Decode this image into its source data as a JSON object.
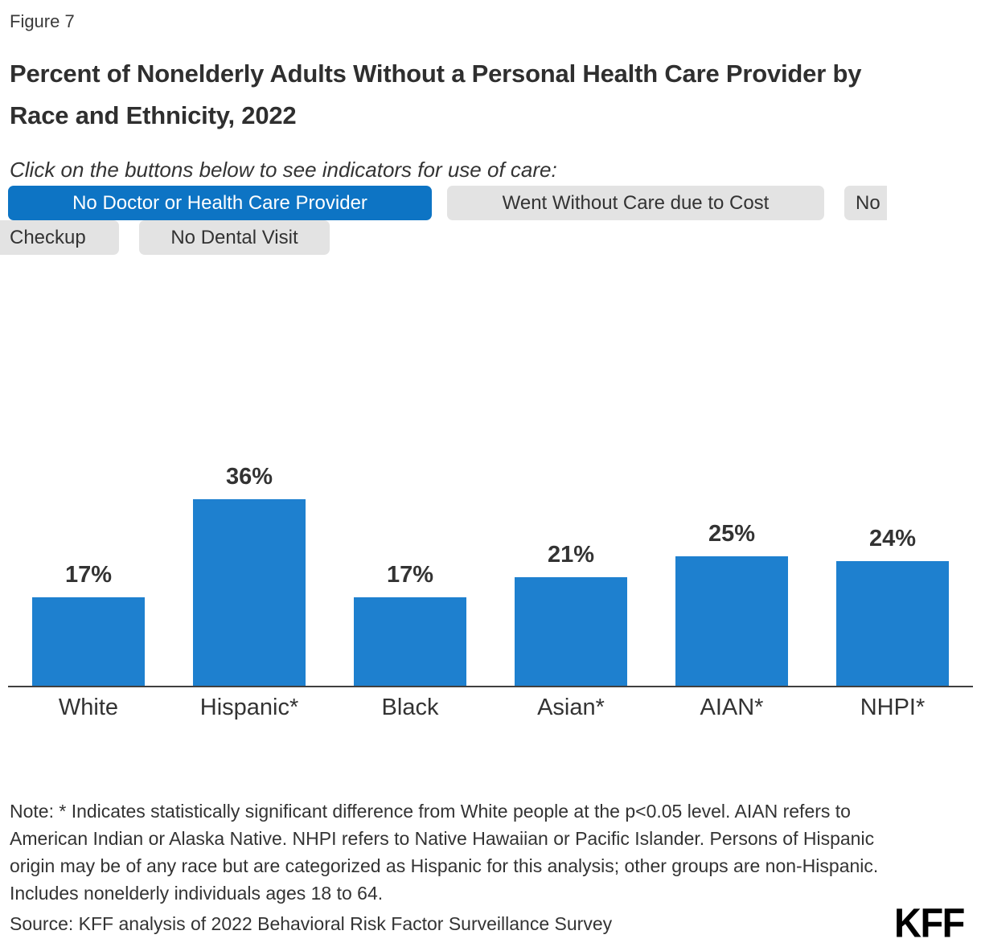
{
  "figure_label": "Figure 7",
  "title": "Percent of Nonelderly Adults Without a Personal Health Care Provider by Race and Ethnicity, 2022",
  "instruction": "Click on the buttons below to see indicators for use of care:",
  "buttons": {
    "items": [
      {
        "label": "No Doctor or Health Care Provider",
        "state": "active"
      },
      {
        "label": "Went Without Care due to Cost",
        "state": "default"
      },
      {
        "label": "No Checkup",
        "state": "default",
        "fragments": [
          "No",
          "Checkup"
        ]
      },
      {
        "label": "No Dental Visit",
        "state": "default"
      }
    ]
  },
  "chart_data": {
    "type": "bar",
    "title": "Percent of Nonelderly Adults Without a Personal Health Care Provider by Race and Ethnicity, 2022",
    "categories": [
      "White",
      "Hispanic*",
      "Black",
      "Asian*",
      "AIAN*",
      "NHPI*"
    ],
    "values": [
      17,
      36,
      17,
      21,
      25,
      24
    ],
    "value_labels": [
      "17%",
      "36%",
      "17%",
      "21%",
      "25%",
      "24%"
    ],
    "xlabel": "",
    "ylabel": "",
    "ylim": [
      0,
      40
    ],
    "grid": false,
    "legend": false,
    "bar_color": "#1e80cf"
  },
  "note": "Note: * Indicates statistically significant difference from White people at the p<0.05 level. AIAN refers to American Indian or Alaska Native. NHPI refers to Native Hawaiian or Pacific Islander. Persons of Hispanic origin may be of any race but are categorized as Hispanic for this analysis; other groups are non-Hispanic. Includes nonelderly individuals ages 18 to 64.",
  "source": "Source: KFF analysis of 2022 Behavioral Risk Factor Surveillance Survey",
  "logo_text": "KFF",
  "colors": {
    "active_button_bg": "#0d74c4",
    "active_button_text": "#ffffff",
    "inactive_button_bg": "#e3e3e3",
    "bar": "#1e80cf",
    "text": "#333333",
    "axis": "#404040"
  }
}
